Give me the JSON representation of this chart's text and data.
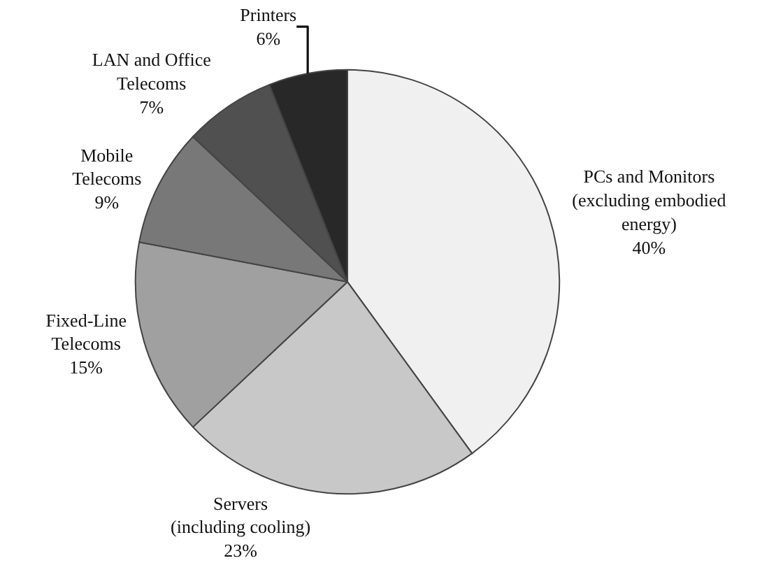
{
  "chart_data": {
    "type": "pie",
    "categories": [
      "PCs and Monitors\n(excluding embodied\nenergy)",
      "Servers\n(including cooling)",
      "Fixed-Line\nTelecoms",
      "Mobile\nTelecoms",
      "LAN and Office\nTelecoms",
      "Printers"
    ],
    "values": [
      40,
      23,
      15,
      9,
      7,
      6
    ],
    "value_labels": [
      "40%",
      "23%",
      "15%",
      "9%",
      "7%",
      "6%"
    ],
    "colors": [
      "#f0f0f0",
      "#c8c8c8",
      "#a0a0a0",
      "#787878",
      "#505050",
      "#282828"
    ],
    "legend": false
  }
}
